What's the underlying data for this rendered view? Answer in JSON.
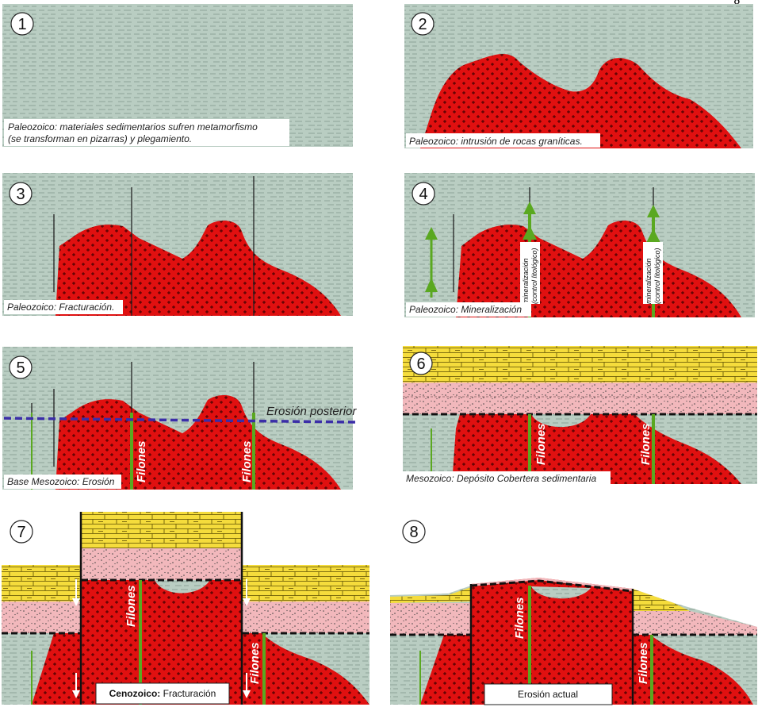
{
  "corner_text": "g",
  "colors": {
    "slate": "#b9cdc2",
    "granite": "#e01010",
    "vein": "#5aa820",
    "limestone": "#f5dc3c",
    "sandstone": "#f2b8bc",
    "erosion_line": "#3b2ea8"
  },
  "panels": [
    {
      "number": "1",
      "caption_line1": "Paleozoico: materiales sedimentarios sufren metamorfismo",
      "caption_line2": "(se transforman en pizarras) y plegamiento."
    },
    {
      "number": "2",
      "caption": "Paleozoico: intrusión de rocas graníticas."
    },
    {
      "number": "3",
      "caption": "Paleozoico: Fracturación."
    },
    {
      "number": "4",
      "caption": "Paleozoico: Mineralización",
      "label_line1": "mineralización",
      "label_line2": "(control litológico)"
    },
    {
      "number": "5",
      "caption": "Base Mesozoico: Erosión",
      "erosion_label": "Erosión posterior",
      "vein_label": "Filones"
    },
    {
      "number": "6",
      "caption": "Mesozoico: Depósito Cobertera sedimentaria",
      "vein_label": "Filones"
    },
    {
      "number": "7",
      "caption_bold": "Cenozoico:",
      "caption_rest": " Fracturación",
      "vein_label": "Filones"
    },
    {
      "number": "8",
      "caption": "Erosión actual",
      "vein_label": "Filones"
    }
  ]
}
